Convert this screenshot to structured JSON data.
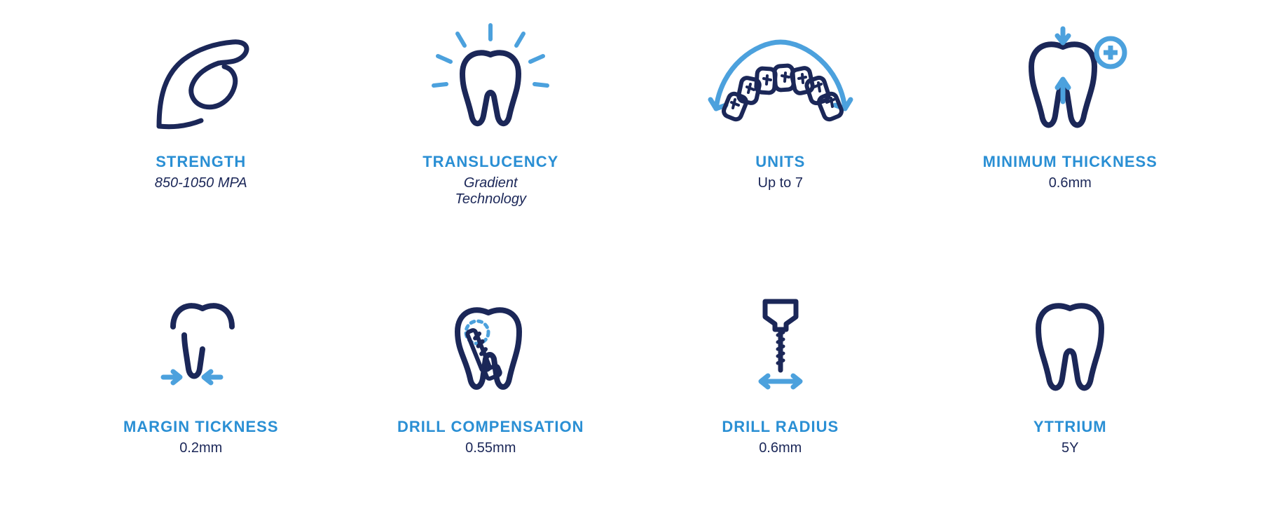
{
  "layout": {
    "columns": 4,
    "rows": 2,
    "background_color": "#ffffff"
  },
  "colors": {
    "title": "#2a8fd4",
    "value": "#1b2758",
    "icon_dark": "#1b2758",
    "icon_accent": "#4ca1dd"
  },
  "typography": {
    "title_fontsize": 22,
    "value_fontsize": 20,
    "value_fontsize_small": 19
  },
  "items": [
    {
      "id": "strength",
      "title": "STRENGTH",
      "value": "850-1050 MPA",
      "value_style": "italic"
    },
    {
      "id": "translucency",
      "title": "TRANSLUCENCY",
      "value": "Gradient\nTechnology",
      "value_style": "italic"
    },
    {
      "id": "units",
      "title": "UNITS",
      "value": "Up to 7",
      "value_style": "normal"
    },
    {
      "id": "min-thickness",
      "title": "MINIMUM THICKNESS",
      "value": "0.6mm",
      "value_style": "normal"
    },
    {
      "id": "margin-thickness",
      "title": "MARGIN TICKNESS",
      "value": "0.2mm",
      "value_style": "normal"
    },
    {
      "id": "drill-compensation",
      "title": "DRILL COMPENSATION",
      "value": "0.55mm",
      "value_style": "normal"
    },
    {
      "id": "drill-radius",
      "title": "DRILL RADIUS",
      "value": "0.6mm",
      "value_style": "normal"
    },
    {
      "id": "yttrium",
      "title": "YTTRIUM",
      "value": "5Y",
      "value_style": "normal"
    }
  ]
}
